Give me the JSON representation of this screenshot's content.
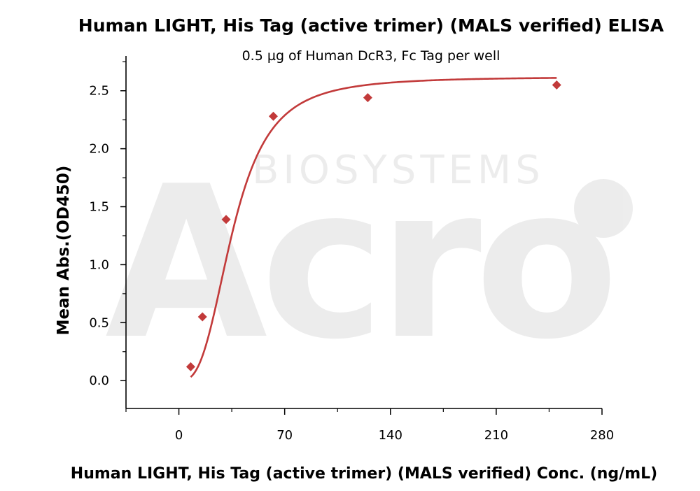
{
  "chart_data": {
    "type": "scatter",
    "title": "Human LIGHT, His Tag (active trimer) (MALS verified) ELISA",
    "subtitle": "0.5 µg of Human DcR3, Fc Tag per well",
    "xlabel": "Human LIGHT, His Tag (active trimer) (MALS verified) Conc. (ng/mL)",
    "ylabel": "Mean Abs.(OD450)",
    "xlim": [
      -35,
      280
    ],
    "ylim": [
      -0.24,
      2.8
    ],
    "xticks": [
      "0",
      "70",
      "140",
      "210",
      "280"
    ],
    "yticks": [
      "0.0",
      "0.5",
      "1.0",
      "1.5",
      "2.0",
      "2.5"
    ],
    "grid": false,
    "watermark": "Acro BIOSYSTEMS",
    "colors": {
      "series": "#c23a3a",
      "axis": "#000000",
      "watermark": "#eeeeee"
    },
    "series": [
      {
        "marker": "diamond",
        "fit": "four-parameter logistic",
        "points": [
          {
            "x": 7.8,
            "y": 0.12
          },
          {
            "x": 15.6,
            "y": 0.55
          },
          {
            "x": 31.25,
            "y": 1.39
          },
          {
            "x": 62.5,
            "y": 2.28
          },
          {
            "x": 125,
            "y": 2.44
          },
          {
            "x": 250,
            "y": 2.55
          }
        ]
      }
    ]
  }
}
